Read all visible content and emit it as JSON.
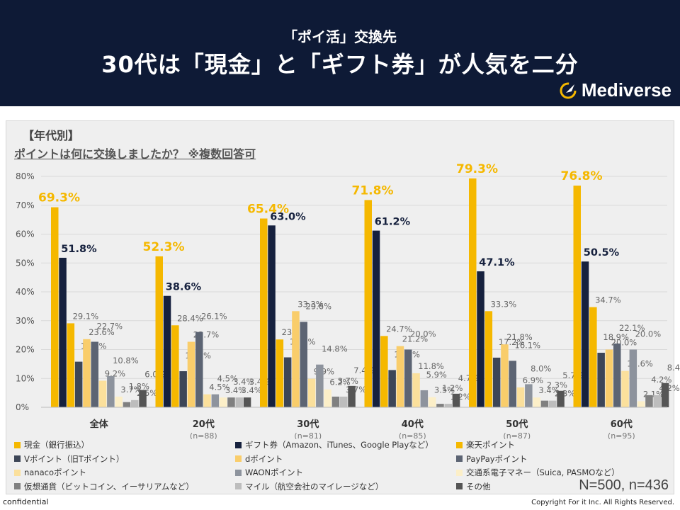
{
  "header": {
    "subtitle": "「ポイ活」交換先",
    "title": "30代は「現金」と「ギフト券」が人気を二分",
    "brand": "Mediverse"
  },
  "section_title": "【年代別】",
  "question": "ポイントは何に交換しましたか？ ※複数回答可",
  "sample_note": "N=500, n=436",
  "footer": {
    "left": "confidential",
    "right": "Copyright For it Inc. All Rights Reserved."
  },
  "colors": {
    "cash": "#f5b800",
    "gift": "#16213e",
    "rakuten": "#f5b800",
    "v": "#3d4657",
    "d": "#f9cd6b",
    "paypay": "#5c6473",
    "nanaco": "#fbe09c",
    "waon": "#8d939d",
    "ic": "#fcefc8",
    "crypto": "#808080",
    "mile": "#bdbdbd",
    "other": "#555555"
  },
  "chart_data": {
    "type": "bar",
    "ylim": [
      0,
      80
    ],
    "yticks": [
      "0%",
      "10%",
      "20%",
      "30%",
      "40%",
      "50%",
      "60%",
      "70%",
      "80%"
    ],
    "categories": [
      {
        "label": "全体",
        "n": ""
      },
      {
        "label": "20代",
        "n": "(n=88)"
      },
      {
        "label": "30代",
        "n": "(n=81)"
      },
      {
        "label": "40代",
        "n": "(n=85)"
      },
      {
        "label": "50代",
        "n": "(n=87)"
      },
      {
        "label": "60代",
        "n": "(n=95)"
      }
    ],
    "series": [
      {
        "name": "現金（銀行振込）",
        "key": "cash",
        "values": [
          69.3,
          52.3,
          65.4,
          71.8,
          79.3,
          76.8
        ]
      },
      {
        "name": "ギフト券（Amazon、iTunes、Google Playなど）",
        "key": "gift",
        "values": [
          51.8,
          38.6,
          63.0,
          61.2,
          47.1,
          50.5
        ]
      },
      {
        "name": "楽天ポイント",
        "key": "rakuten",
        "values": [
          29.1,
          28.4,
          23.5,
          24.7,
          33.3,
          34.7
        ]
      },
      {
        "name": "Vポイント（旧Tポイント）",
        "key": "v",
        "values": [
          15.8,
          12.5,
          17.3,
          12.9,
          17.2,
          18.9
        ]
      },
      {
        "name": "dポイント",
        "key": "d",
        "values": [
          23.6,
          22.7,
          33.3,
          21.2,
          21.8,
          20.0
        ]
      },
      {
        "name": "PayPayポイント",
        "key": "paypay",
        "values": [
          22.7,
          26.1,
          29.6,
          20.0,
          16.1,
          22.1
        ]
      },
      {
        "name": "nanacoポイント",
        "key": "nanaco",
        "values": [
          9.2,
          4.5,
          9.9,
          11.8,
          6.9,
          12.6
        ]
      },
      {
        "name": "WAONポイント",
        "key": "waon",
        "values": [
          10.8,
          4.5,
          14.8,
          5.9,
          8.0,
          20.0
        ]
      },
      {
        "name": "交通系電子マネー（Suica, PASMOなど）",
        "key": "ic",
        "values": [
          3.7,
          3.4,
          6.2,
          3.5,
          3.4,
          2.1
        ]
      },
      {
        "name": "仮想通貨（ビットコイン、イーサリアムなど）",
        "key": "crypto",
        "values": [
          1.8,
          3.4,
          3.7,
          1.2,
          2.3,
          4.2
        ]
      },
      {
        "name": "マイル（航空会社のマイレージなど）",
        "key": "mile",
        "values": [
          2.5,
          3.4,
          3.7,
          1.2,
          2.3,
          4.2
        ]
      },
      {
        "name": "その他",
        "key": "other",
        "values": [
          6.0,
          3.4,
          7.4,
          4.7,
          5.7,
          8.4
        ]
      }
    ]
  }
}
